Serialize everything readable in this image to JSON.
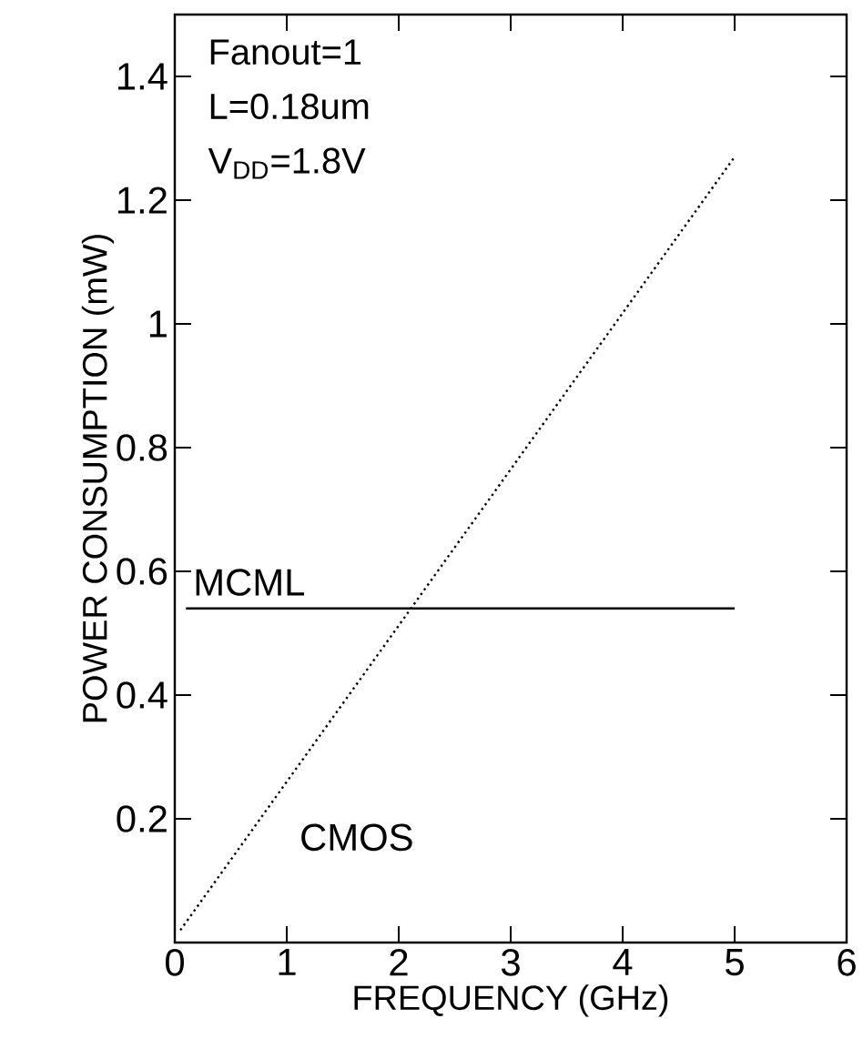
{
  "chart_data": {
    "type": "line",
    "xlabel": "FREQUENCY (GHz)",
    "ylabel": "POWER CONSUMPTION (mW)",
    "xlim": [
      0,
      6
    ],
    "ylim": [
      0,
      1.5
    ],
    "xticks": [
      0,
      1,
      2,
      3,
      4,
      5,
      6
    ],
    "yticks": [
      0.2,
      0.4,
      0.6,
      0.8,
      1,
      1.2,
      1.4
    ],
    "grid": false,
    "series": [
      {
        "name": "MCML",
        "color": "#000000",
        "line_style": "solid",
        "x": [
          0.1,
          5
        ],
        "values": [
          0.54,
          0.54
        ]
      },
      {
        "name": "CMOS",
        "color": "#000000",
        "line_style": "dotted",
        "x": [
          0.05,
          5
        ],
        "values": [
          0.02,
          1.27
        ]
      }
    ],
    "annotations": [
      "Fanout=1",
      "L=0.18um",
      "V$_{DD}$=1.8V"
    ]
  }
}
